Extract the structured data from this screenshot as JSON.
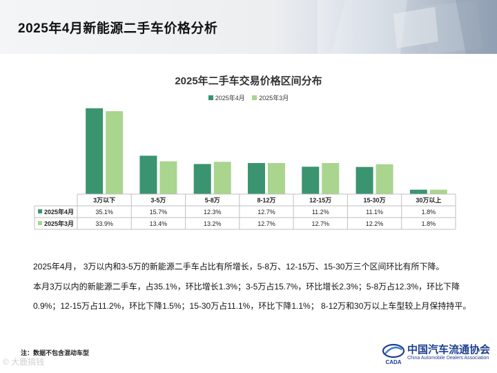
{
  "page": {
    "title": "2025年4月新能源二手车价格分析",
    "note": "注：数据不包含混动车型",
    "watermark": "© 大鹿搞钱",
    "logo": {
      "cn": "中国汽车流通协会",
      "en": "China Automobile Dealers Association",
      "mark": "CADA"
    }
  },
  "colors": {
    "apr": "#3a9470",
    "mar": "#a9d58f",
    "grid": "#bfbfbf"
  },
  "chart_data": {
    "type": "bar",
    "title": "2025年二手车交易价格区间分布",
    "categories": [
      "3万以下",
      "3-5万",
      "5-8万",
      "8-12万",
      "12-15万",
      "15-30万",
      "30万以上"
    ],
    "series": [
      {
        "name": "2025年4月",
        "values": [
          35.1,
          15.7,
          12.3,
          12.7,
          11.2,
          11.1,
          1.8
        ],
        "labels": [
          "35.1%",
          "15.7%",
          "12.3%",
          "12.7%",
          "11.2%",
          "11.1%",
          "1.8%"
        ]
      },
      {
        "name": "2025年3月",
        "values": [
          33.9,
          13.4,
          13.2,
          12.7,
          12.7,
          12.2,
          1.8
        ],
        "labels": [
          "33.9%",
          "13.4%",
          "13.2%",
          "12.7%",
          "12.7%",
          "12.2%",
          "1.8%"
        ]
      }
    ],
    "ylim": [
      0,
      37
    ],
    "legend": "top-center",
    "data_table": true
  },
  "analysis": {
    "line1": "2025年4月， 3万以内和3-5万的新能源二手车占比有所增长，5-8万、12-15万、15-30万三个区间环比有所下降。",
    "line2": "本月3万以内的新能源二手车，占35.1%，环比增长1.3%；3-5万占15.7%，环比增长2.3%；5-8万占12.3%，环比下降",
    "line3": "0.9%；12-15万占11.2%，环比下降1.5%；15-30万占11.1%，环比下降1.1%；  8-12万和30万以上车型较上月保持持平。"
  }
}
